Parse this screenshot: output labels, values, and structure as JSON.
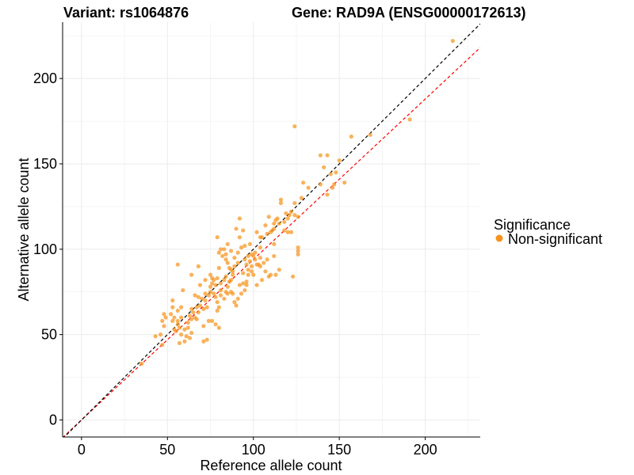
{
  "chart_data": {
    "type": "scatter",
    "title_left": "Variant: rs1064876",
    "title_right": "Gene: RAD9A (ENSG00000172613)",
    "xlabel": "Reference allele count",
    "ylabel": "Alternative allele count",
    "xlim": [
      -11,
      232
    ],
    "ylim": [
      -10,
      233
    ],
    "xticks": [
      0,
      50,
      100,
      150,
      200
    ],
    "yticks": [
      0,
      50,
      100,
      150,
      200
    ],
    "xtick_labels": [
      "0",
      "50",
      "100",
      "150",
      "200"
    ],
    "ytick_labels": [
      "0",
      "50",
      "100",
      "150",
      "200"
    ],
    "grid": true,
    "legend": {
      "title": "Significance",
      "entries": [
        {
          "label": "Non-significant",
          "color": "#f7941d"
        }
      ],
      "position": "right"
    },
    "reference_lines": [
      {
        "name": "identity",
        "slope": 1.0,
        "intercept": 0,
        "color": "#000000",
        "style": "dashed"
      },
      {
        "name": "fit",
        "slope": 0.94,
        "intercept": 0,
        "color": "#ff0000",
        "style": "dashed"
      }
    ],
    "colors": {
      "point": "#f7941d",
      "grid": "#ebebeb",
      "axis": "#000000"
    },
    "series": [
      {
        "name": "Non-significant",
        "points": [
          [
            216,
            222
          ],
          [
            191,
            176
          ],
          [
            168,
            167
          ],
          [
            157,
            166
          ],
          [
            124,
            172
          ],
          [
            150,
            152
          ],
          [
            148,
            145
          ],
          [
            153,
            139
          ],
          [
            143,
            132
          ],
          [
            146,
            136
          ],
          [
            147,
            138
          ],
          [
            139,
            155
          ],
          [
            143,
            155
          ],
          [
            145,
            144
          ],
          [
            141,
            148
          ],
          [
            139,
            138
          ],
          [
            129,
            139
          ],
          [
            132,
            136
          ],
          [
            128,
            130
          ],
          [
            124,
            127
          ],
          [
            122,
            122
          ],
          [
            124,
            120
          ],
          [
            120,
            118
          ],
          [
            126,
            119
          ],
          [
            116,
            127
          ],
          [
            116,
            129
          ],
          [
            114,
            118
          ],
          [
            112,
            115
          ],
          [
            107,
            114
          ],
          [
            105,
            107
          ],
          [
            118,
            111
          ],
          [
            122,
            110
          ],
          [
            111,
            111
          ],
          [
            108,
            109
          ],
          [
            112,
            103
          ],
          [
            102,
            110
          ],
          [
            104,
            107
          ],
          [
            104,
            101
          ],
          [
            104,
            95
          ],
          [
            106,
            92
          ],
          [
            108,
            94
          ],
          [
            112,
            96
          ],
          [
            115,
            88
          ],
          [
            113,
            85
          ],
          [
            110,
            85
          ],
          [
            105,
            82
          ],
          [
            123,
            84
          ],
          [
            126,
            101
          ],
          [
            126,
            99
          ],
          [
            126,
            97
          ],
          [
            92,
            118
          ],
          [
            90,
            112
          ],
          [
            94,
            111
          ],
          [
            92,
            107
          ],
          [
            93,
            101
          ],
          [
            91,
            98
          ],
          [
            95,
            102
          ],
          [
            98,
            103
          ],
          [
            99,
            97
          ],
          [
            101,
            98
          ],
          [
            97,
            96
          ],
          [
            95,
            94
          ],
          [
            98,
            93
          ],
          [
            96,
            91
          ],
          [
            94,
            86
          ],
          [
            91,
            92
          ],
          [
            89,
            90
          ],
          [
            88,
            87
          ],
          [
            86,
            89
          ],
          [
            87,
            82
          ],
          [
            84,
            84
          ],
          [
            83,
            82
          ],
          [
            86,
            81
          ],
          [
            88,
            85
          ],
          [
            87,
            88
          ],
          [
            85,
            92
          ],
          [
            80,
            89
          ],
          [
            79,
            83
          ],
          [
            81,
            80
          ],
          [
            76,
            83
          ],
          [
            79,
            107
          ],
          [
            80,
            98
          ],
          [
            83,
            100
          ],
          [
            84,
            94
          ],
          [
            82,
            96
          ],
          [
            92,
            79
          ],
          [
            94,
            80
          ],
          [
            97,
            88
          ],
          [
            100,
            85
          ],
          [
            102,
            79
          ],
          [
            85,
            78
          ],
          [
            84,
            75
          ],
          [
            87,
            75
          ],
          [
            88,
            74
          ],
          [
            81,
            76
          ],
          [
            78,
            79
          ],
          [
            75,
            78
          ],
          [
            76,
            80
          ],
          [
            77,
            82
          ],
          [
            75,
            75
          ],
          [
            74,
            73
          ],
          [
            72,
            74
          ],
          [
            72,
            70
          ],
          [
            70,
            71
          ],
          [
            73,
            66
          ],
          [
            69,
            67
          ],
          [
            71,
            65
          ],
          [
            68,
            63
          ],
          [
            67,
            66
          ],
          [
            65,
            63
          ],
          [
            66,
            60
          ],
          [
            64,
            59
          ],
          [
            63,
            61
          ],
          [
            62,
            57
          ],
          [
            58,
            60
          ],
          [
            56,
            56
          ],
          [
            57,
            54
          ],
          [
            56,
            58
          ],
          [
            55,
            52
          ],
          [
            58,
            50
          ],
          [
            60,
            53
          ],
          [
            62,
            54
          ],
          [
            63,
            48
          ],
          [
            61,
            49
          ],
          [
            64,
            51
          ],
          [
            60,
            46
          ],
          [
            57,
            45
          ],
          [
            54,
            53
          ],
          [
            52,
            62
          ],
          [
            53,
            66
          ],
          [
            54,
            60
          ],
          [
            56,
            64
          ],
          [
            58,
            66
          ],
          [
            47,
            44
          ],
          [
            46,
            50
          ],
          [
            43,
            49
          ],
          [
            48,
            55
          ],
          [
            47,
            58
          ],
          [
            49,
            60
          ],
          [
            48,
            62
          ],
          [
            53,
            58
          ],
          [
            53,
            70
          ],
          [
            56,
            91
          ],
          [
            59,
            76
          ],
          [
            64,
            85
          ],
          [
            68,
            90
          ],
          [
            69,
            79
          ],
          [
            72,
            82
          ],
          [
            75,
            85
          ],
          [
            77,
            74
          ],
          [
            78,
            72
          ],
          [
            79,
            69
          ],
          [
            80,
            66
          ],
          [
            79,
            64
          ],
          [
            80,
            54
          ],
          [
            78,
            56
          ],
          [
            76,
            58
          ],
          [
            73,
            47
          ],
          [
            71,
            46
          ],
          [
            67,
            59
          ],
          [
            68,
            72
          ],
          [
            66,
            73
          ],
          [
            64,
            65
          ],
          [
            71,
            55
          ],
          [
            74,
            58
          ],
          [
            81,
            73
          ],
          [
            83,
            71
          ],
          [
            85,
            74
          ],
          [
            89,
            69
          ],
          [
            90,
            67
          ],
          [
            91,
            71
          ],
          [
            93,
            74
          ],
          [
            95,
            76
          ],
          [
            96,
            79
          ],
          [
            99,
            87
          ],
          [
            102,
            91
          ],
          [
            104,
            90
          ],
          [
            107,
            87
          ],
          [
            109,
            84
          ],
          [
            103,
            91
          ],
          [
            101,
            94
          ],
          [
            100,
            96
          ],
          [
            99,
            90
          ],
          [
            97,
            85
          ],
          [
            96,
            81
          ],
          [
            89,
            95
          ],
          [
            87,
            99
          ],
          [
            85,
            103
          ],
          [
            84,
            97
          ],
          [
            81,
            100
          ],
          [
            109,
            119
          ],
          [
            113,
            117
          ],
          [
            119,
            121
          ],
          [
            120,
            110
          ],
          [
            121,
            120
          ],
          [
            118,
            116
          ],
          [
            115,
            115
          ],
          [
            112,
            112
          ],
          [
            110,
            110
          ],
          [
            35,
            33
          ]
        ]
      }
    ]
  }
}
